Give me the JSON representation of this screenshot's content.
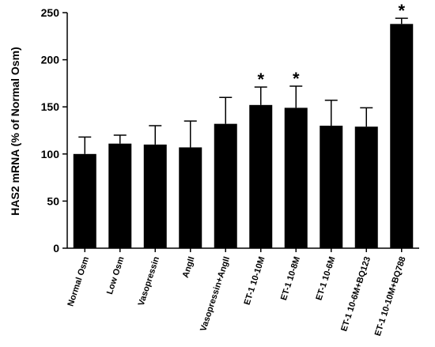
{
  "chart_data": {
    "type": "bar",
    "ylabel": "HAS2 mRNA (% of Normal Osm)",
    "xlabel": "",
    "ylim": [
      0,
      250
    ],
    "yticks": [
      0,
      50,
      100,
      150,
      200,
      250
    ],
    "categories": [
      "Normal Osm",
      "Low Osm",
      "Vasopressin",
      "AngII",
      "Vasopressin+AngII",
      "ET-1 10-10M",
      "ET-1 10-8M",
      "ET-1 10-6M",
      "ET-1 10-6M+BQ123",
      "ET-1 10-10M+BQ788"
    ],
    "values": [
      100,
      111,
      110,
      107,
      132,
      152,
      149,
      130,
      129,
      238
    ],
    "errors": [
      18,
      9,
      20,
      28,
      28,
      19,
      23,
      27,
      20,
      6
    ],
    "significance": [
      "",
      "",
      "",
      "",
      "",
      "*",
      "*",
      "",
      "",
      "*"
    ],
    "bar_color": "#000000",
    "grid": false
  }
}
